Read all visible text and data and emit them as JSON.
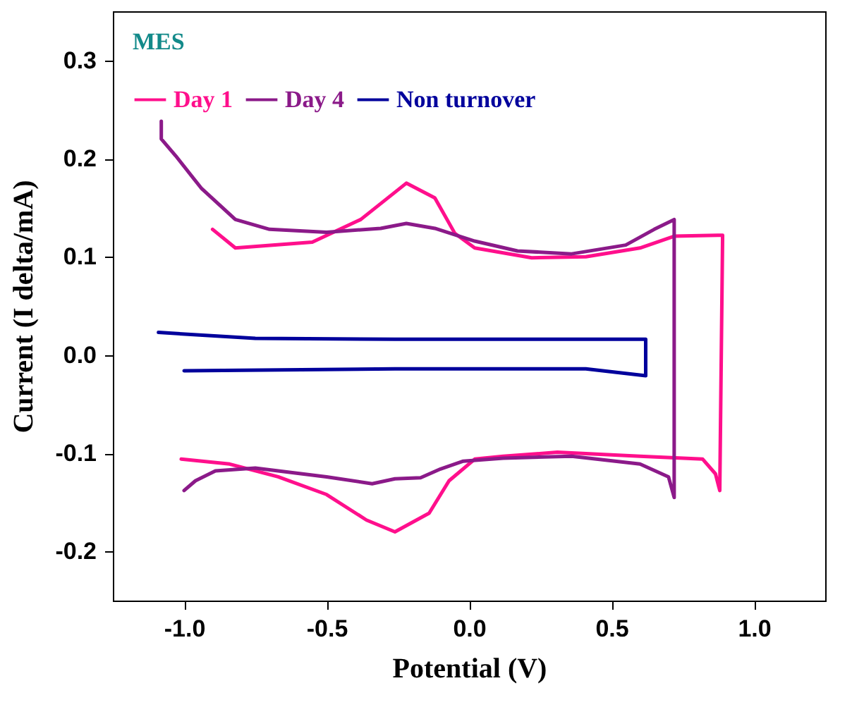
{
  "chart_data": {
    "type": "line",
    "title": "MES",
    "xlabel": "Potential (V)",
    "ylabel": "Current (I delta/mA)",
    "xlim": [
      -1.25,
      1.25
    ],
    "xticks": [
      {
        "value": -1,
        "label": "-1.0"
      },
      {
        "value": -0.5,
        "label": "-0.5"
      },
      {
        "value": 0,
        "label": "0.0"
      },
      {
        "value": 0.5,
        "label": "0.5"
      },
      {
        "value": 1,
        "label": "1.0"
      }
    ],
    "ylim": [
      -0.25,
      0.35
    ],
    "yticks": [
      {
        "value": -0.2,
        "label": "-0.2"
      },
      {
        "value": -0.1,
        "label": "-0.1"
      },
      {
        "value": 0,
        "label": "0.0"
      },
      {
        "value": 0.1,
        "label": "0.1"
      },
      {
        "value": 0.2,
        "label": "0.2"
      },
      {
        "value": 0.3,
        "label": "0.3"
      }
    ],
    "grid": false,
    "legend": "top left",
    "series": [
      {
        "name": "Day 1",
        "color": "#ff0f8c",
        "x": [
          -0.9,
          -0.82,
          -0.55,
          -0.38,
          -0.22,
          -0.12,
          -0.05,
          0.02,
          0.22,
          0.41,
          0.6,
          0.72,
          0.89,
          0.88,
          0.865,
          0.82,
          0.6,
          0.31,
          0.12,
          0.02,
          -0.07,
          -0.14,
          -0.26,
          -0.36,
          -0.5,
          -0.67,
          -0.84,
          -1.01
        ],
        "values": [
          0.128,
          0.109,
          0.115,
          0.138,
          0.175,
          0.16,
          0.124,
          0.109,
          0.099,
          0.1,
          0.109,
          0.121,
          0.122,
          -0.138,
          -0.121,
          -0.106,
          -0.103,
          -0.099,
          -0.103,
          -0.106,
          -0.128,
          -0.161,
          -0.18,
          -0.168,
          -0.142,
          -0.124,
          -0.111,
          -0.106
        ]
      },
      {
        "name": "Day 4",
        "color": "#8b1a89",
        "x": [
          -1.08,
          -1.08,
          -1.03,
          -0.94,
          -0.82,
          -0.7,
          -0.5,
          -0.31,
          -0.22,
          -0.12,
          0.02,
          0.17,
          0.36,
          0.55,
          0.65,
          0.72,
          0.72,
          0.7,
          0.6,
          0.36,
          0.12,
          -0.02,
          -0.1,
          -0.17,
          -0.26,
          -0.34,
          -0.5,
          -0.75,
          -0.89,
          -0.96,
          -1.0
        ],
        "values": [
          0.238,
          0.22,
          0.203,
          0.17,
          0.138,
          0.128,
          0.125,
          0.129,
          0.134,
          0.129,
          0.116,
          0.106,
          0.103,
          0.112,
          0.128,
          0.138,
          -0.145,
          -0.124,
          -0.111,
          -0.103,
          -0.105,
          -0.108,
          -0.116,
          -0.125,
          -0.126,
          -0.131,
          -0.124,
          -0.115,
          -0.118,
          -0.128,
          -0.138
        ]
      },
      {
        "name": "Non turnover",
        "color": "#00009c",
        "x": [
          -1.09,
          -0.75,
          -0.26,
          0.62,
          0.62,
          0.41,
          -0.26,
          -1.0
        ],
        "values": [
          0.023,
          0.017,
          0.016,
          0.016,
          -0.021,
          -0.014,
          -0.014,
          -0.016
        ]
      }
    ]
  }
}
